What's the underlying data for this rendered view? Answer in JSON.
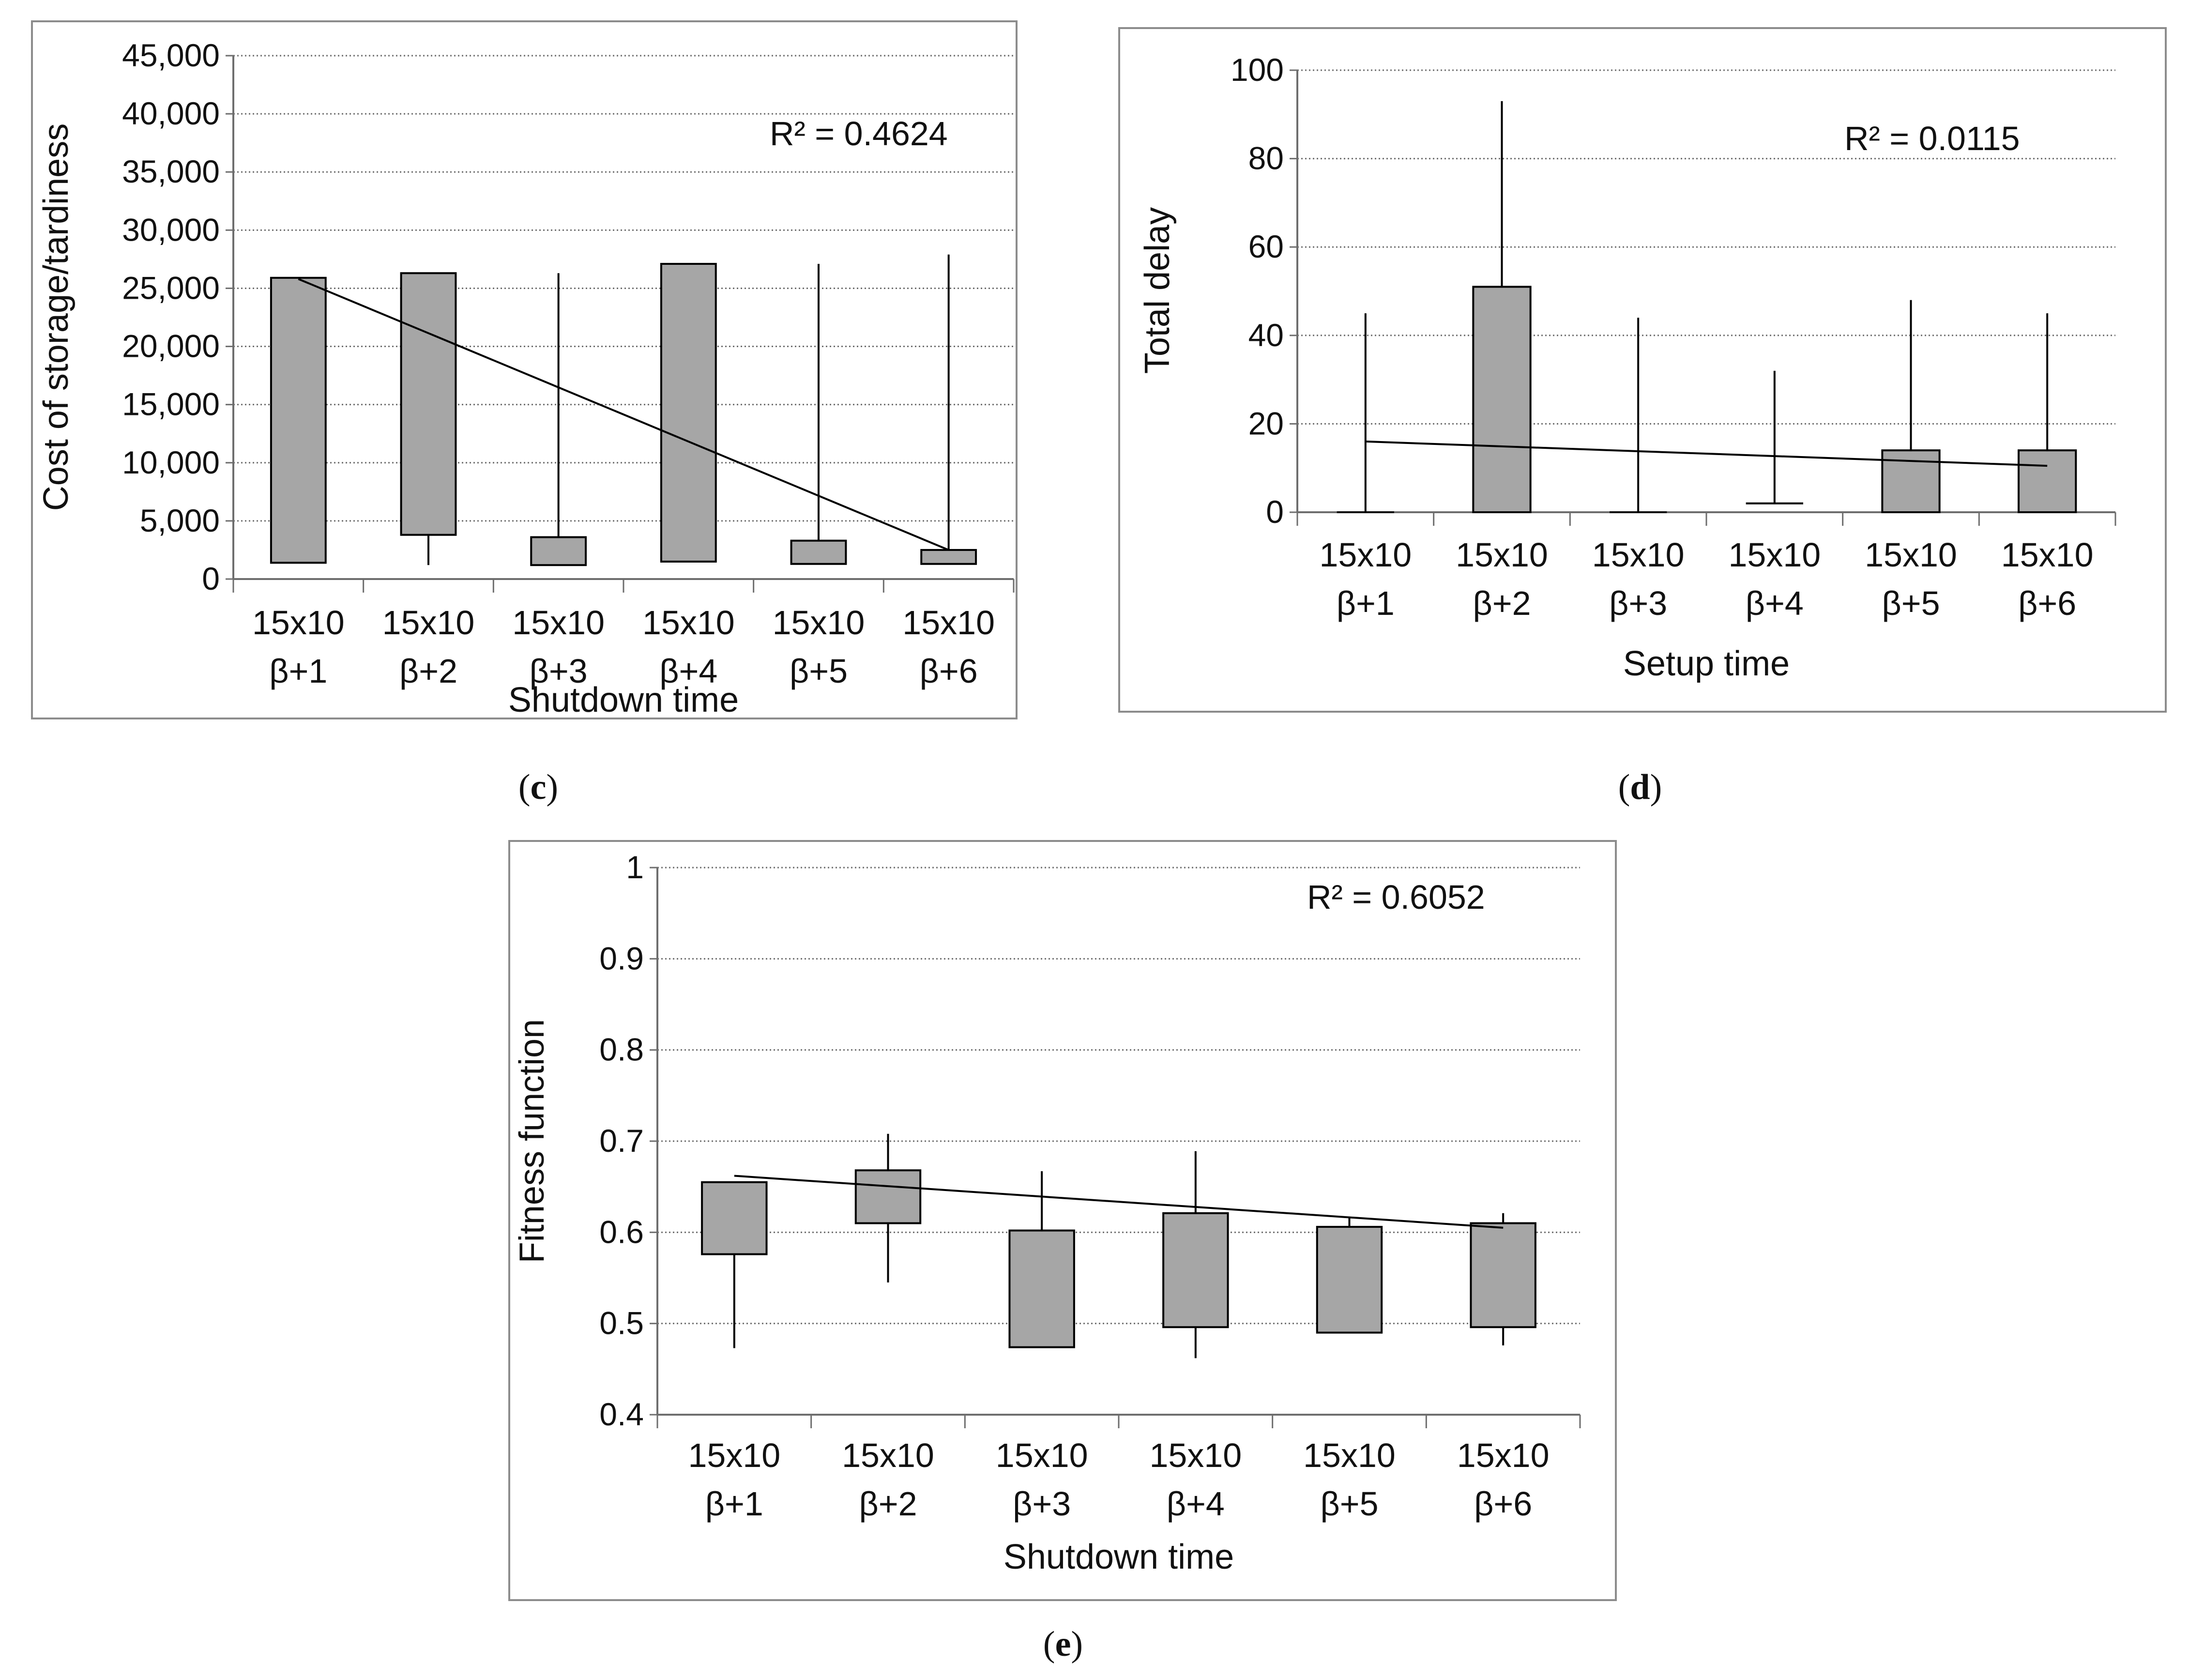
{
  "figure": {
    "panels": [
      {
        "letter": "c",
        "caption_open": "(",
        "caption_close": ")"
      },
      {
        "letter": "d",
        "caption_open": "(",
        "caption_close": ")"
      },
      {
        "letter": "e",
        "caption_open": "(",
        "caption_close": ")"
      }
    ]
  },
  "colors": {
    "box_fill": "#a6a6a6",
    "stroke": "#000000",
    "grid": "#6e6e6e",
    "frame": "#8c8c8c"
  },
  "chart_data": [
    {
      "type": "box",
      "panel": "c",
      "title": "",
      "xlabel": "Shutdown time",
      "ylabel": "Cost of storage/tardiness",
      "categories": [
        [
          "15x10",
          "β+1"
        ],
        [
          "15x10",
          "β+2"
        ],
        [
          "15x10",
          "β+3"
        ],
        [
          "15x10",
          "β+4"
        ],
        [
          "15x10",
          "β+5"
        ],
        [
          "15x10",
          "β+6"
        ]
      ],
      "ylim": [
        0,
        45000
      ],
      "yticks": [
        0,
        5000,
        10000,
        15000,
        20000,
        25000,
        30000,
        35000,
        40000,
        45000
      ],
      "ytick_labels": [
        "0",
        "5,000",
        "10,000",
        "15,000",
        "20,000",
        "25,000",
        "30,000",
        "35,000",
        "40,000",
        "45,000"
      ],
      "grid": true,
      "boxes": [
        {
          "min": 1400,
          "q1": 1400,
          "q3": 25900,
          "max": 25900
        },
        {
          "min": 1200,
          "q1": 3800,
          "q3": 26300,
          "max": 26300
        },
        {
          "min": 1200,
          "q1": 1200,
          "q3": 3600,
          "max": 26300
        },
        {
          "min": 1500,
          "q1": 1500,
          "q3": 27100,
          "max": 27100
        },
        {
          "min": 1300,
          "q1": 1300,
          "q3": 3300,
          "max": 27100
        },
        {
          "min": 1300,
          "q1": 1300,
          "q3": 2500,
          "max": 27900
        }
      ],
      "trendline": {
        "start": 25800,
        "end": 2500
      },
      "r_squared": "R² = 0.4624"
    },
    {
      "type": "box",
      "panel": "d",
      "title": "",
      "xlabel": "Setup time",
      "ylabel": "Total delay",
      "categories": [
        [
          "15x10",
          "β+1"
        ],
        [
          "15x10",
          "β+2"
        ],
        [
          "15x10",
          "β+3"
        ],
        [
          "15x10",
          "β+4"
        ],
        [
          "15x10",
          "β+5"
        ],
        [
          "15x10",
          "β+6"
        ]
      ],
      "ylim": [
        0,
        100
      ],
      "yticks": [
        0,
        20,
        40,
        60,
        80,
        100
      ],
      "ytick_labels": [
        "0",
        "20",
        "40",
        "60",
        "80",
        "100"
      ],
      "grid": true,
      "boxes": [
        {
          "min": 0,
          "q1": 0,
          "q3": 0,
          "max": 45
        },
        {
          "min": 0,
          "q1": 0,
          "q3": 51,
          "max": 93
        },
        {
          "min": 0,
          "q1": 0,
          "q3": 0,
          "max": 44
        },
        {
          "min": 2,
          "q1": 2,
          "q3": 2,
          "max": 32
        },
        {
          "min": 0,
          "q1": 0,
          "q3": 14,
          "max": 48
        },
        {
          "min": 0,
          "q1": 0,
          "q3": 14,
          "max": 45
        }
      ],
      "trendline": {
        "start": 16,
        "end": 10.5
      },
      "r_squared": "R² = 0.0115"
    },
    {
      "type": "box",
      "panel": "e",
      "title": "",
      "xlabel": "Shutdown time",
      "ylabel": "Fitness function",
      "categories": [
        [
          "15x10",
          "β+1"
        ],
        [
          "15x10",
          "β+2"
        ],
        [
          "15x10",
          "β+3"
        ],
        [
          "15x10",
          "β+4"
        ],
        [
          "15x10",
          "β+5"
        ],
        [
          "15x10",
          "β+6"
        ]
      ],
      "ylim": [
        0.4,
        1
      ],
      "yticks": [
        0.4,
        0.5,
        0.6,
        0.7,
        0.8,
        0.9,
        1
      ],
      "ytick_labels": [
        "0.4",
        "0.5",
        "0.6",
        "0.7",
        "0.8",
        "0.9",
        "1"
      ],
      "grid": true,
      "boxes": [
        {
          "min": 0.473,
          "q1": 0.576,
          "q3": 0.655,
          "max": 0.655
        },
        {
          "min": 0.545,
          "q1": 0.61,
          "q3": 0.668,
          "max": 0.708
        },
        {
          "min": 0.474,
          "q1": 0.474,
          "q3": 0.602,
          "max": 0.667
        },
        {
          "min": 0.462,
          "q1": 0.496,
          "q3": 0.621,
          "max": 0.689
        },
        {
          "min": 0.49,
          "q1": 0.49,
          "q3": 0.606,
          "max": 0.617
        },
        {
          "min": 0.476,
          "q1": 0.496,
          "q3": 0.61,
          "max": 0.621
        }
      ],
      "trendline": {
        "start": 0.662,
        "end": 0.605
      },
      "r_squared": "R² = 0.6052"
    }
  ]
}
